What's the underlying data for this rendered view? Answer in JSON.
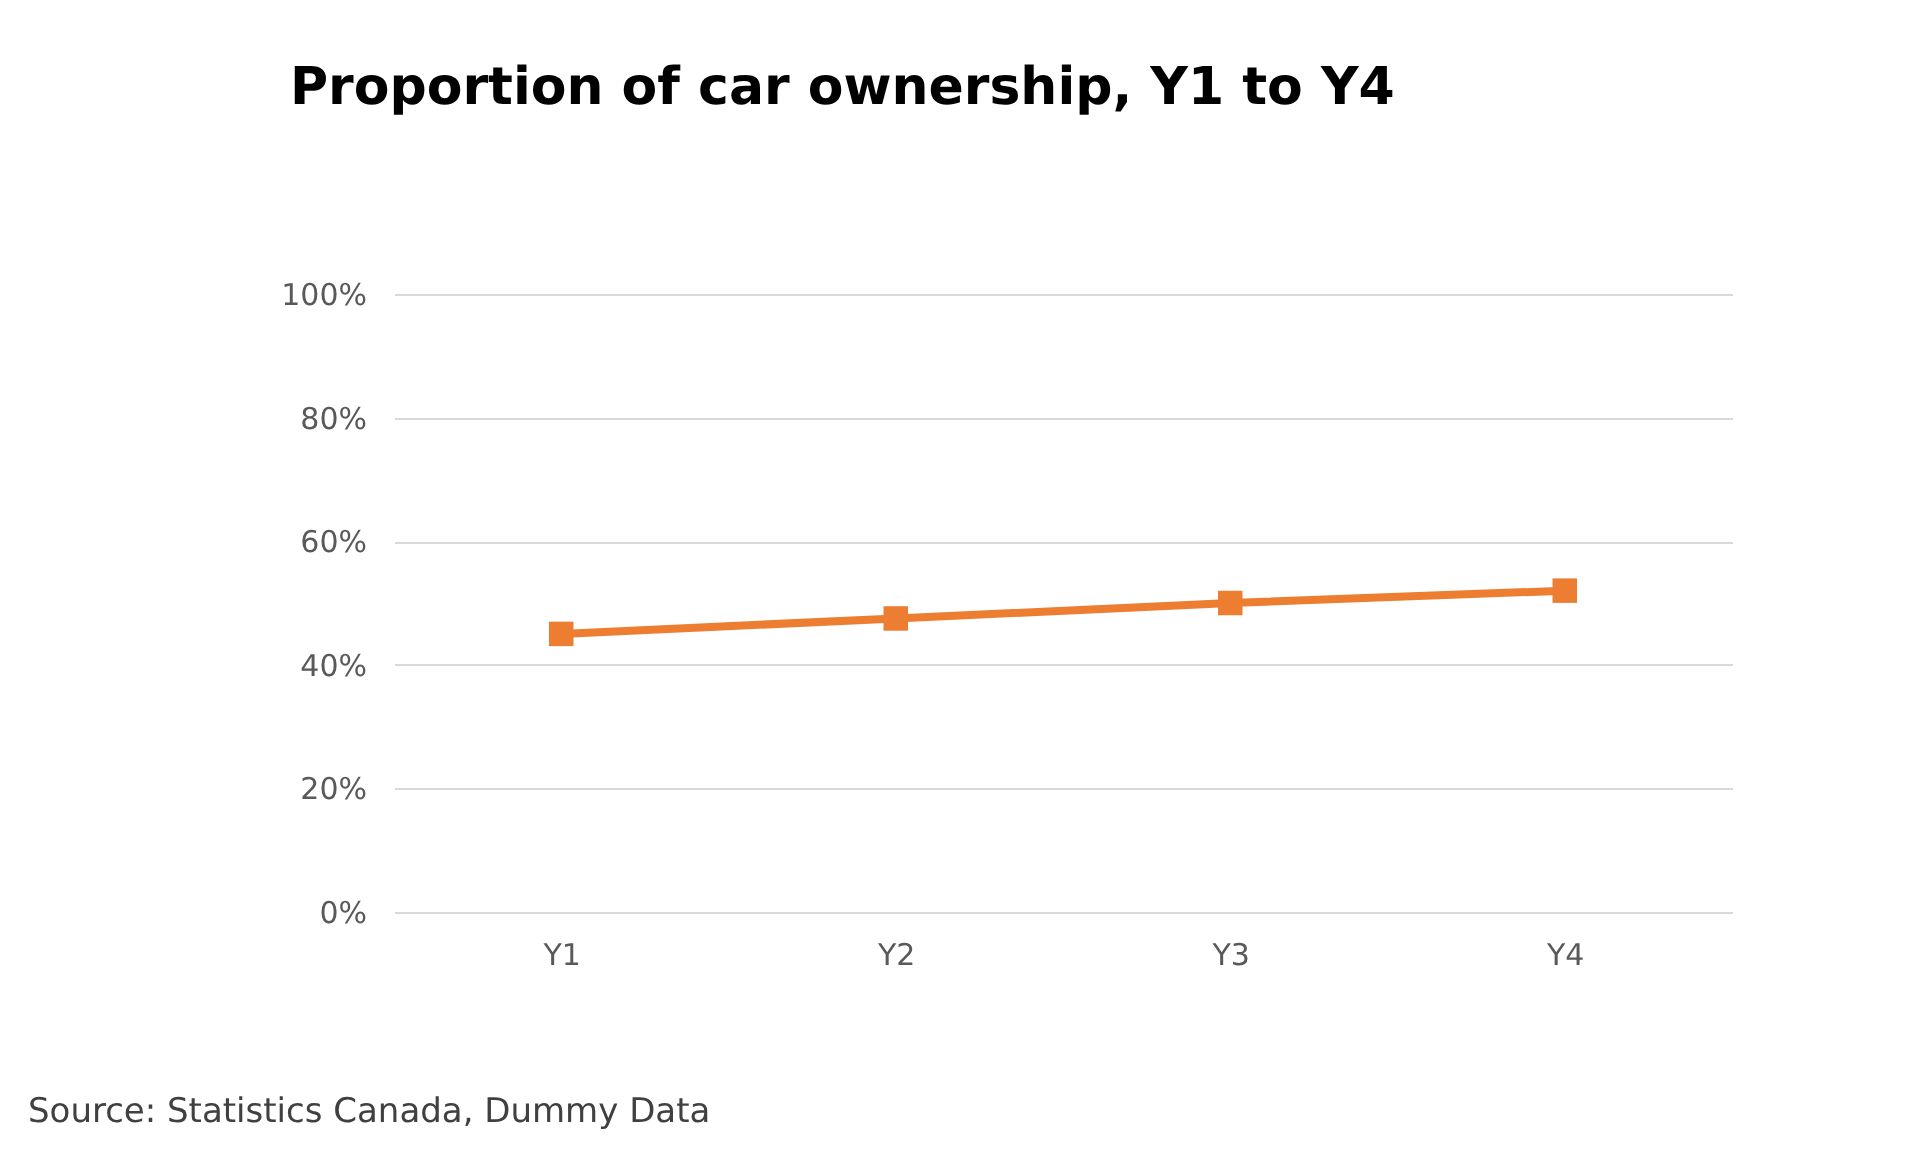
{
  "chart_data": {
    "type": "line",
    "title": "Proportion of car ownership, Y1 to Y4",
    "categories": [
      "Y1",
      "Y2",
      "Y3",
      "Y4"
    ],
    "series": [
      {
        "color": "#ed7d31",
        "values": [
          45,
          47.5,
          50,
          52
        ]
      }
    ],
    "ylim": [
      0,
      100
    ],
    "yticks": [
      {
        "value": 0,
        "label": "0%"
      },
      {
        "value": 20,
        "label": "20%"
      },
      {
        "value": 40,
        "label": "40%"
      },
      {
        "value": 60,
        "label": "60%"
      },
      {
        "value": 80,
        "label": "80%"
      },
      {
        "value": 100,
        "label": "100%"
      }
    ],
    "grid": "y",
    "marker": "square",
    "line_style": "solid",
    "legend": false,
    "annotations": [
      "Source:  Statistics Canada, Dummy Data"
    ]
  }
}
